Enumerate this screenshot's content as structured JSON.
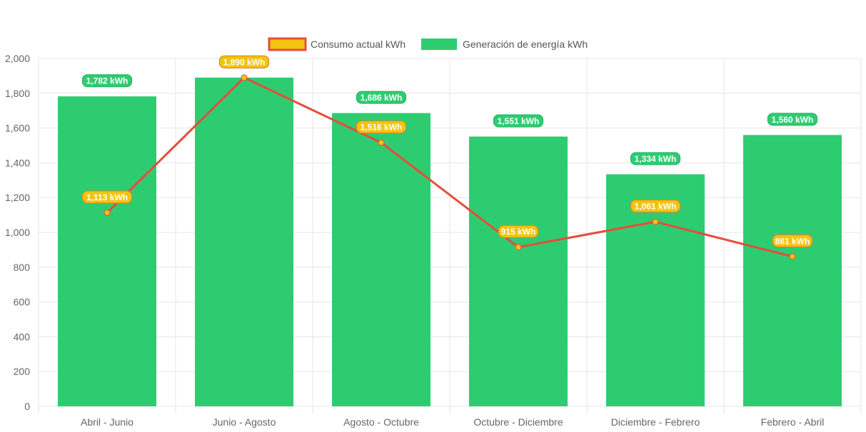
{
  "chart_data": {
    "type": "bar",
    "categories": [
      "Abril - Junio",
      "Junio - Agosto",
      "Agosto - Octubre",
      "Octubre - Diciembre",
      "Diciembre - Febrero",
      "Febrero - Abril"
    ],
    "series": [
      {
        "name": "Consumo actual kWh",
        "type": "line",
        "values": [
          1113,
          1890,
          1516,
          915,
          1061,
          861
        ],
        "labels": [
          "1,113 kWh",
          "1,890 kWh",
          "1,516 kWh",
          "915 kWh",
          "1,061 kWh",
          "861 kWh"
        ],
        "color": "#e74c3c",
        "fill": "#f1c40f",
        "label_bg": "#f1c40f",
        "label_border": "#e67e22"
      },
      {
        "name": "Generación de energía kWh",
        "type": "bar",
        "values": [
          1782,
          1890,
          1686,
          1551,
          1334,
          1560
        ],
        "labels": [
          "1,782 kWh",
          "1,890 kWh",
          "1,686 kWh",
          "1,551 kWh",
          "1,334 kWh",
          "1,560 kWh"
        ],
        "color": "#2ecc71",
        "label_bg": "#2ecc71",
        "label_border": "#27ae60"
      }
    ],
    "ylim": [
      0,
      2000
    ],
    "yticks": [
      "0",
      "200",
      "400",
      "600",
      "800",
      "1,000",
      "1,200",
      "1,400",
      "1,600",
      "1,800",
      "2,000"
    ],
    "grid": true,
    "legend": "top-center"
  }
}
